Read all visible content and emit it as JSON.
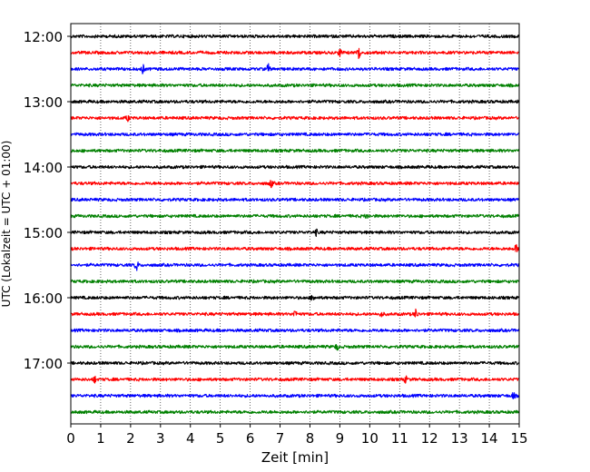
{
  "chart_data": {
    "type": "line",
    "subtype": "helicorder",
    "xlabel": "Zeit  [min]",
    "ylabel": "UTC (Lokalzeit = UTC + 01:00)",
    "xlim": [
      0,
      15
    ],
    "x_ticks": [
      0,
      1,
      2,
      3,
      4,
      5,
      6,
      7,
      8,
      9,
      10,
      11,
      12,
      13,
      14,
      15
    ],
    "y_tick_labels": [
      "12:00",
      "13:00",
      "14:00",
      "15:00",
      "16:00",
      "17:00"
    ],
    "grid": "vertical-dotted",
    "trace_interval_min": 15,
    "color_cycle": [
      "#000000",
      "#ff0000",
      "#0000ff",
      "#008000"
    ],
    "traces": [
      {
        "start": "12:00",
        "color": "#000000",
        "events": []
      },
      {
        "start": "12:15",
        "color": "#ff0000",
        "events": [
          {
            "t": 9.0,
            "amp": 4
          },
          {
            "t": 9.65,
            "amp": 9
          }
        ]
      },
      {
        "start": "12:30",
        "color": "#0000ff",
        "events": [
          {
            "t": 2.4,
            "amp": 5
          },
          {
            "t": 6.6,
            "amp": 5
          }
        ]
      },
      {
        "start": "12:45",
        "color": "#008000",
        "events": []
      },
      {
        "start": "13:00",
        "color": "#000000",
        "events": []
      },
      {
        "start": "13:15",
        "color": "#ff0000",
        "events": [
          {
            "t": 1.9,
            "amp": 3
          }
        ]
      },
      {
        "start": "13:30",
        "color": "#0000ff",
        "events": []
      },
      {
        "start": "13:45",
        "color": "#008000",
        "events": []
      },
      {
        "start": "14:00",
        "color": "#000000",
        "events": []
      },
      {
        "start": "14:15",
        "color": "#ff0000",
        "events": [
          {
            "t": 6.7,
            "amp": 4
          }
        ]
      },
      {
        "start": "14:30",
        "color": "#0000ff",
        "events": []
      },
      {
        "start": "14:45",
        "color": "#008000",
        "events": [
          {
            "t": 9.9,
            "amp": 3
          }
        ]
      },
      {
        "start": "15:00",
        "color": "#000000",
        "events": [
          {
            "t": 8.2,
            "amp": 3
          }
        ]
      },
      {
        "start": "15:15",
        "color": "#ff0000",
        "events": [
          {
            "t": 14.9,
            "amp": 4
          }
        ]
      },
      {
        "start": "15:30",
        "color": "#0000ff",
        "events": [
          {
            "t": 2.2,
            "amp": 6
          }
        ]
      },
      {
        "start": "15:45",
        "color": "#008000",
        "events": []
      },
      {
        "start": "16:00",
        "color": "#000000",
        "events": [
          {
            "t": 8.1,
            "amp": 4
          }
        ]
      },
      {
        "start": "16:15",
        "color": "#ff0000",
        "events": [
          {
            "t": 7.5,
            "amp": 4
          },
          {
            "t": 10.4,
            "amp": 3
          },
          {
            "t": 11.55,
            "amp": 5
          }
        ]
      },
      {
        "start": "16:30",
        "color": "#0000ff",
        "events": []
      },
      {
        "start": "16:45",
        "color": "#008000",
        "events": [
          {
            "t": 8.9,
            "amp": 3
          }
        ]
      },
      {
        "start": "17:00",
        "color": "#000000",
        "events": []
      },
      {
        "start": "17:15",
        "color": "#ff0000",
        "events": [
          {
            "t": 0.8,
            "amp": 3
          },
          {
            "t": 11.2,
            "amp": 3
          }
        ]
      },
      {
        "start": "17:30",
        "color": "#0000ff",
        "events": [
          {
            "t": 14.8,
            "amp": 3
          }
        ]
      },
      {
        "start": "17:45",
        "color": "#008000",
        "events": []
      }
    ]
  }
}
